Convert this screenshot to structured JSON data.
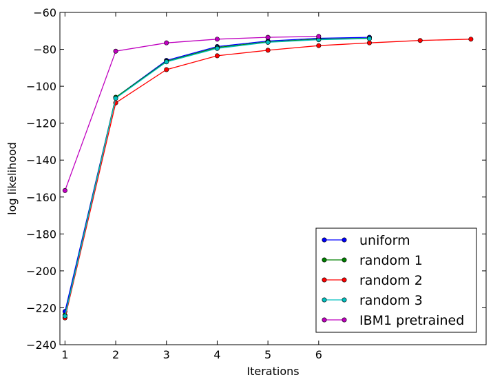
{
  "chart_data": {
    "type": "line",
    "xlabel": "Iterations",
    "ylabel": "log likelihood",
    "xlim": [
      0.9,
      9.3
    ],
    "ylim": [
      -240,
      -60
    ],
    "xticks": [
      1,
      2,
      3,
      4,
      5,
      6
    ],
    "xtick_labels": [
      "1",
      "2",
      "3",
      "4",
      "5",
      "6"
    ],
    "yticks": [
      -240,
      -220,
      -200,
      -180,
      -160,
      -140,
      -120,
      -100,
      -80,
      -60
    ],
    "ytick_labels": [
      "−240",
      "−220",
      "−200",
      "−180",
      "−160",
      "−140",
      "−120",
      "−100",
      "−80",
      "−60"
    ],
    "grid": false,
    "legend_position": "bottom-right",
    "series": [
      {
        "name": "uniform",
        "color": "#0000ff",
        "x": [
          1,
          2,
          3,
          4,
          5,
          6,
          7
        ],
        "y": [
          -222,
          -106,
          -86,
          -78.5,
          -75.5,
          -74,
          -73.5
        ]
      },
      {
        "name": "random 1",
        "color": "#008000",
        "x": [
          1,
          2,
          3,
          4,
          5,
          6,
          7
        ],
        "y": [
          -224,
          -106,
          -86.5,
          -79,
          -76,
          -74.5,
          -74
        ]
      },
      {
        "name": "random 2",
        "color": "#ff0000",
        "x": [
          1,
          2,
          3,
          4,
          5,
          6,
          7,
          8,
          9
        ],
        "y": [
          -225.5,
          -109,
          -91,
          -83.5,
          -80.5,
          -78,
          -76.5,
          -75.2,
          -74.5
        ]
      },
      {
        "name": "random 3",
        "color": "#00bfbf",
        "x": [
          1,
          2,
          3,
          4,
          5,
          6,
          7
        ],
        "y": [
          -224.5,
          -106.5,
          -86.8,
          -79.5,
          -76.2,
          -74.8,
          -74.2
        ]
      },
      {
        "name": "IBM1 pretrained",
        "color": "#bf00bf",
        "x": [
          1,
          2,
          3,
          4,
          5,
          6
        ],
        "y": [
          -156.5,
          -81,
          -76.5,
          -74.5,
          -73.5,
          -73
        ]
      }
    ]
  }
}
